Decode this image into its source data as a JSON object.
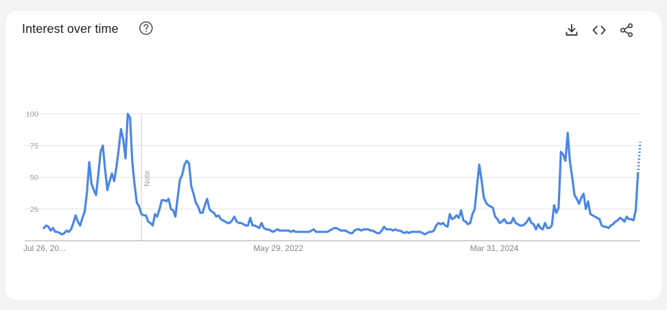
{
  "header": {
    "title": "Interest over time",
    "help_icon": "help-circle-icon",
    "actions": [
      "download-icon",
      "embed-code-icon",
      "share-icon"
    ]
  },
  "chart_data": {
    "type": "line",
    "color": "#4a86e8",
    "ylim": [
      0,
      100
    ],
    "y_ticks": [
      25,
      50,
      75,
      100
    ],
    "x_tick_labels": [
      "Jul 26, 20...",
      "May 29, 2022",
      "Mar 31, 2024"
    ],
    "note": {
      "label": "Note",
      "index": 43
    },
    "grid": true,
    "partial_last_point": true,
    "series": [
      {
        "values": [
          10,
          12,
          11,
          8,
          10,
          7,
          7,
          6,
          5,
          6,
          8,
          7,
          9,
          14,
          20,
          15,
          12,
          18,
          23,
          38,
          62,
          45,
          40,
          36,
          52,
          70,
          75,
          56,
          40,
          47,
          53,
          47,
          58,
          72,
          88,
          80,
          65,
          100,
          97,
          62,
          44,
          30,
          27,
          21,
          20,
          20,
          15,
          14,
          12,
          21,
          19,
          25,
          32,
          32,
          31,
          33,
          25,
          24,
          19,
          34,
          48,
          52,
          60,
          63,
          61,
          43,
          37,
          30,
          27,
          22,
          22,
          28,
          33,
          25,
          23,
          22,
          19,
          20,
          17,
          16,
          15,
          14,
          14,
          16,
          19,
          15,
          14,
          14,
          13,
          12,
          12,
          18,
          12,
          12,
          11,
          10,
          14,
          10,
          9,
          9,
          8,
          7,
          8,
          9,
          8,
          8,
          8,
          8,
          8,
          7,
          8,
          7,
          7,
          7,
          7,
          7,
          7,
          7,
          8,
          9,
          7,
          7,
          7,
          7,
          7,
          7,
          8,
          9,
          10,
          10,
          9,
          8,
          8,
          8,
          7,
          6,
          6,
          8,
          9,
          9,
          8,
          9,
          9,
          9,
          8,
          8,
          7,
          6,
          6,
          8,
          11,
          9,
          9,
          9,
          8,
          9,
          8,
          8,
          7,
          6,
          7,
          6,
          7,
          7,
          7,
          7,
          7,
          6,
          5,
          6,
          7,
          7,
          8,
          12,
          14,
          13,
          14,
          12,
          11,
          21,
          17,
          18,
          20,
          18,
          24,
          16,
          15,
          13,
          14,
          21,
          25,
          43,
          60,
          48,
          34,
          30,
          28,
          27,
          26,
          19,
          17,
          14,
          15,
          17,
          14,
          14,
          14,
          18,
          14,
          13,
          12,
          12,
          13,
          15,
          18,
          14,
          13,
          9,
          13,
          10,
          9,
          14,
          10,
          10,
          12,
          28,
          22,
          26,
          70,
          68,
          63,
          85,
          62,
          50,
          36,
          33,
          29,
          34,
          37,
          25,
          31,
          21,
          20,
          19,
          18,
          17,
          12,
          11,
          11,
          10,
          12,
          13,
          15,
          16,
          18,
          17,
          15,
          19,
          17,
          17,
          16,
          24,
          53,
          78
        ]
      }
    ]
  }
}
